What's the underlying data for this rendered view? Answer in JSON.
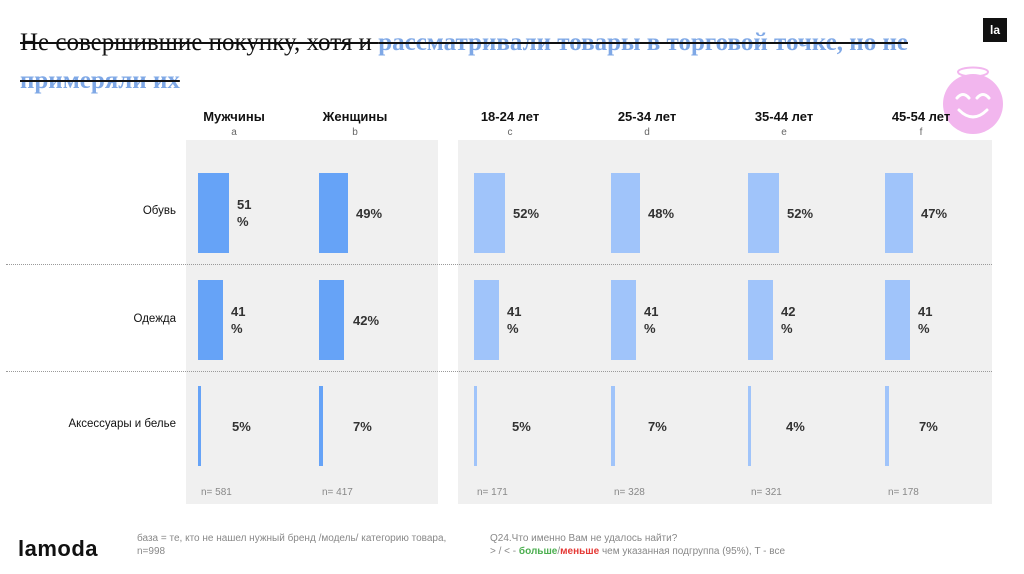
{
  "title": {
    "part1": "Не совершившие покупку, хотя и ",
    "part2": "рассматривали товары в торговой точке, но не примеряли их"
  },
  "brand": {
    "corner_logo": "la",
    "logo": "lamoda"
  },
  "colors": {
    "gender_bar": "#66a3f7",
    "age_bar": "#a0c4fa",
    "panel_bg": "#f0f0f0"
  },
  "footer": {
    "base_note": "база = те, кто не нашел нужный бренд /модель/ категорию товара, n=998",
    "question": "Q24.Что именно Вам не удалось найти?",
    "legend_prefix": "> / < - ",
    "legend_more": "больше",
    "legend_sep": "/",
    "legend_less": "меньше",
    "legend_suffix": " чем указанная подгруппа (95%), T - все"
  },
  "chart_data": {
    "type": "bar",
    "orientation": "horizontal",
    "unit": "%",
    "categories": [
      "Обувь",
      "Одежда",
      "Аксессуары и белье"
    ],
    "series": [
      {
        "name": "Мужчины",
        "letter": "a",
        "n": "n= 581",
        "group": "gender",
        "values": [
          51,
          41,
          5
        ],
        "labels": [
          "51 %",
          "41 %",
          "5%"
        ]
      },
      {
        "name": "Женщины",
        "letter": "b",
        "n": "n= 417",
        "group": "gender",
        "values": [
          49,
          42,
          7
        ],
        "labels": [
          "49%",
          "42%",
          "7%"
        ]
      },
      {
        "name": "18-24 лет",
        "letter": "c",
        "n": "n= 171",
        "group": "age",
        "values": [
          52,
          41,
          5
        ],
        "labels": [
          "52%",
          "41 %",
          "5%"
        ]
      },
      {
        "name": "25-34 лет",
        "letter": "d",
        "n": "n= 328",
        "group": "age",
        "values": [
          48,
          41,
          7
        ],
        "labels": [
          "48%",
          "41 %",
          "7%"
        ]
      },
      {
        "name": "35-44 лет",
        "letter": "e",
        "n": "n= 321",
        "group": "age",
        "values": [
          52,
          42,
          4
        ],
        "labels": [
          "52%",
          "42 %",
          "4%"
        ]
      },
      {
        "name": "45-54 лет",
        "letter": "f",
        "n": "n= 178",
        "group": "age",
        "values": [
          47,
          41,
          7
        ],
        "labels": [
          "47%",
          "41 %",
          "7%"
        ]
      }
    ]
  }
}
